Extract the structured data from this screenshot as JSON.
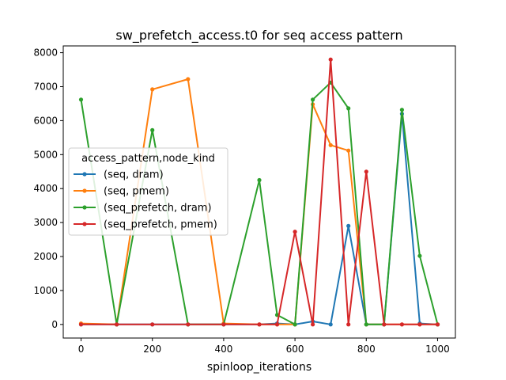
{
  "chart_data": {
    "type": "line",
    "title": "sw_prefetch_access.t0 for seq access pattern",
    "xlabel": "spinloop_iterations",
    "ylabel": "",
    "xlim": [
      -50,
      1050
    ],
    "ylim": [
      -400,
      8200
    ],
    "xticks": [
      0,
      200,
      400,
      600,
      800,
      1000
    ],
    "yticks": [
      0,
      1000,
      2000,
      3000,
      4000,
      5000,
      6000,
      7000,
      8000
    ],
    "grid": false,
    "legend": {
      "title": "access_pattern,node_kind",
      "placement": "center-left"
    },
    "x": [
      0,
      100,
      200,
      300,
      400,
      500,
      550,
      600,
      650,
      700,
      750,
      800,
      850,
      900,
      950,
      1000
    ],
    "series": [
      {
        "name": "(seq, dram)",
        "color": "#1f77b4",
        "values": [
          0,
          0,
          0,
          0,
          0,
          0,
          30,
          0,
          90,
          0,
          2900,
          0,
          0,
          6200,
          30,
          0
        ]
      },
      {
        "name": "(seq, pmem)",
        "color": "#ff7f0e",
        "values": [
          30,
          0,
          6920,
          7220,
          30,
          0,
          0,
          0,
          6480,
          5280,
          5120,
          0,
          0,
          0,
          0,
          0
        ]
      },
      {
        "name": "(seq_prefetch, dram)",
        "color": "#2ca02c",
        "values": [
          6620,
          0,
          5720,
          0,
          0,
          4250,
          280,
          0,
          6620,
          7120,
          6360,
          0,
          0,
          6320,
          2020,
          0
        ]
      },
      {
        "name": "(seq_prefetch, pmem)",
        "color": "#d62728",
        "values": [
          0,
          0,
          0,
          0,
          0,
          0,
          0,
          2730,
          0,
          7800,
          0,
          4500,
          0,
          0,
          0,
          0
        ]
      }
    ]
  }
}
